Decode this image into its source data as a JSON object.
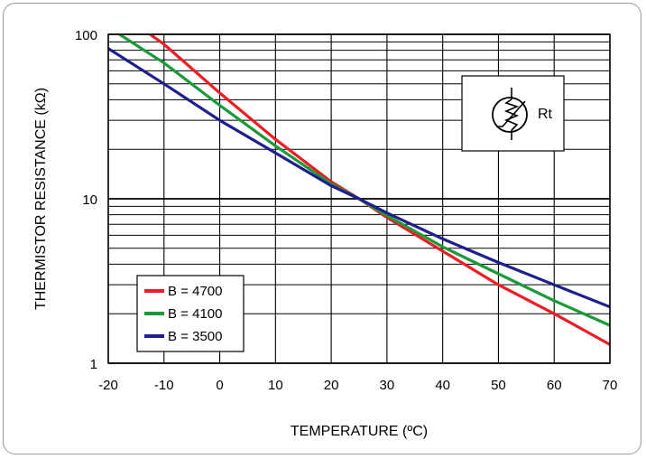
{
  "chart_data": {
    "type": "line",
    "xlabel": "TEMPERATURE (ºC)",
    "ylabel": "THERMISTOR RESISTANCE (kΩ)",
    "xlim": [
      -20,
      70
    ],
    "ylim": [
      1,
      100
    ],
    "yscale": "log",
    "x_ticks": [
      "-20",
      "-10",
      "0",
      "10",
      "20",
      "30",
      "40",
      "50",
      "60",
      "70"
    ],
    "y_ticks": [
      "1",
      "10",
      "100"
    ],
    "grid": true,
    "legend_position": "bottom-left",
    "series": [
      {
        "name": "B = 4700",
        "color": "#ee1c25",
        "x": [
          -12.5,
          -10,
          0,
          10,
          20,
          25,
          30,
          40,
          50,
          60,
          70
        ],
        "y": [
          100,
          87,
          44,
          23,
          12.7,
          10,
          7.7,
          4.8,
          3.0,
          2.0,
          1.3
        ]
      },
      {
        "name": "B = 4100",
        "color": "#1a9a3a",
        "x": [
          -18,
          -10,
          0,
          10,
          20,
          25,
          30,
          40,
          50,
          60,
          70
        ],
        "y": [
          100,
          67,
          37,
          21,
          12.3,
          10,
          7.9,
          5.1,
          3.5,
          2.4,
          1.7
        ]
      },
      {
        "name": "B = 3500",
        "color": "#1e1e8c",
        "x": [
          -20,
          -10,
          0,
          10,
          20,
          25,
          30,
          40,
          50,
          60,
          70
        ],
        "y": [
          82,
          50,
          30,
          19,
          12,
          10,
          8.2,
          5.7,
          4.1,
          3.0,
          2.2
        ]
      }
    ],
    "annotation": {
      "symbol": "thermistor",
      "label": "Rt"
    }
  }
}
